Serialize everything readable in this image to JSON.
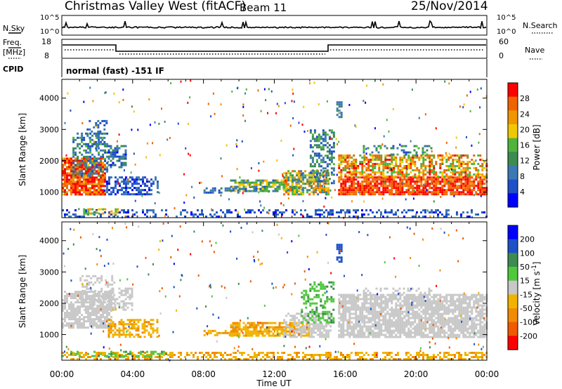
{
  "header": {
    "title": "Christmas Valley West (fitACF)",
    "beam": "Beam 11",
    "date": "25/Nov/2014"
  },
  "panels": {
    "nsky_label": "N.Sky",
    "nsky_ticks": [
      "10^5",
      "10^0"
    ],
    "nsearch_label": "N.Search",
    "nsearch_ticks": [
      "10^5",
      "10^0"
    ],
    "freq_label_1": "Freq.",
    "freq_label_2": "[MHz]",
    "freq_ticks": [
      "18",
      "8"
    ],
    "nave_label": "Nave",
    "nave_ticks": [
      "60",
      "0"
    ],
    "cpid_label": "CPID",
    "cpid_value": "normal (fast) -151 IF"
  },
  "colors": {
    "power": [
      "#0000ff",
      "#1e50c8",
      "#3c78b4",
      "#3c8c50",
      "#50b43c",
      "#f0c800",
      "#f09600",
      "#f06400",
      "#ff0000"
    ],
    "velocity": [
      "#0000ff",
      "#1e50c8",
      "#3c8c50",
      "#50c83c",
      "#c8c8c8",
      "#f0b400",
      "#f08c00",
      "#f05a00",
      "#ff0000"
    ],
    "ground": "#b4b4b4"
  },
  "chart_data": [
    {
      "type": "heatmap",
      "name": "power",
      "ylabel": "Slant Range [km]",
      "xlabel": "Time UT",
      "x_ticks": [
        "00:00",
        "04:00",
        "08:00",
        "12:00",
        "16:00",
        "20:00",
        "00:00"
      ],
      "x_range_hours": [
        0,
        24
      ],
      "y_ticks": [
        "1000",
        "2000",
        "3000",
        "4000"
      ],
      "y_range_km": [
        180,
        4600
      ],
      "colorbar": {
        "label": "Power [dB]",
        "ticks": [
          "4",
          "8",
          "12",
          "16",
          "20",
          "24",
          "28"
        ],
        "range": [
          0,
          32
        ]
      },
      "regions": [
        {
          "t": [
            0.0,
            2.4
          ],
          "r": [
            950,
            2100
          ],
          "value": 27,
          "spread": 6,
          "density": 0.85
        },
        {
          "t": [
            0.6,
            2.6
          ],
          "r": [
            1500,
            2900
          ],
          "value": 10,
          "spread": 6,
          "density": 0.45
        },
        {
          "t": [
            1.4,
            2.5
          ],
          "r": [
            2400,
            3300
          ],
          "value": 8,
          "spread": 4,
          "density": 0.25
        },
        {
          "t": [
            2.6,
            3.6
          ],
          "r": [
            1800,
            2500
          ],
          "value": 8,
          "spread": 6,
          "density": 0.55
        },
        {
          "t": [
            2.5,
            5.4
          ],
          "r": [
            900,
            1500
          ],
          "value": 6,
          "spread": 4,
          "density": 0.55
        },
        {
          "t": [
            8.0,
            10.0
          ],
          "r": [
            950,
            1150
          ],
          "value": 8,
          "spread": 4,
          "density": 0.5
        },
        {
          "t": [
            9.5,
            13.5
          ],
          "r": [
            1000,
            1400
          ],
          "value": 14,
          "spread": 8,
          "density": 0.7
        },
        {
          "t": [
            12.5,
            15.0
          ],
          "r": [
            950,
            1700
          ],
          "value": 18,
          "spread": 10,
          "density": 0.65
        },
        {
          "t": [
            14.0,
            15.4
          ],
          "r": [
            1300,
            3000
          ],
          "value": 10,
          "spread": 6,
          "density": 0.45
        },
        {
          "t": [
            15.5,
            15.8
          ],
          "r": [
            3400,
            3900
          ],
          "value": 10,
          "spread": 4,
          "density": 0.7
        },
        {
          "t": [
            15.6,
            24.0
          ],
          "r": [
            900,
            1500
          ],
          "value": 28,
          "spread": 4,
          "density": 0.85
        },
        {
          "t": [
            15.6,
            24.0
          ],
          "r": [
            1500,
            2200
          ],
          "value": 22,
          "spread": 8,
          "density": 0.6
        },
        {
          "t": [
            17.0,
            21.0
          ],
          "r": [
            2200,
            2500
          ],
          "value": 12,
          "spread": 6,
          "density": 0.3
        },
        {
          "t": [
            0.0,
            24.0
          ],
          "r": [
            200,
            450
          ],
          "value": 6,
          "spread": 4,
          "density": 0.3
        },
        {
          "t": [
            1.2,
            3.2
          ],
          "r": [
            300,
            480
          ],
          "value": 20,
          "spread": 6,
          "density": 0.45
        }
      ]
    },
    {
      "type": "heatmap",
      "name": "velocity",
      "ylabel": "Slant Range [km]",
      "xlabel": "Time UT",
      "x_ticks": [
        "00:00",
        "04:00",
        "08:00",
        "12:00",
        "16:00",
        "20:00",
        "00:00"
      ],
      "x_range_hours": [
        0,
        24
      ],
      "y_ticks": [
        "1000",
        "2000",
        "3000",
        "4000"
      ],
      "y_range_km": [
        180,
        4600
      ],
      "colorbar": {
        "label": "Velocity [m s-1]",
        "ticks": [
          "200",
          "100",
          "50",
          "15",
          "-15",
          "-50",
          "-100",
          "-200"
        ]
      },
      "regions": [
        {
          "t": [
            0.0,
            2.8
          ],
          "r": [
            1200,
            2400
          ],
          "value": 0,
          "spread": 10,
          "density": 0.75
        },
        {
          "t": [
            1.0,
            3.0
          ],
          "r": [
            1800,
            2900
          ],
          "value": 0,
          "spread": 10,
          "density": 0.4
        },
        {
          "t": [
            2.6,
            4.0
          ],
          "r": [
            1800,
            2500
          ],
          "value": 0,
          "spread": 10,
          "density": 0.5
        },
        {
          "t": [
            2.6,
            5.4
          ],
          "r": [
            900,
            1500
          ],
          "value": -40,
          "spread": 20,
          "density": 0.6
        },
        {
          "t": [
            8.0,
            10.0
          ],
          "r": [
            950,
            1150
          ],
          "value": -40,
          "spread": 20,
          "density": 0.5
        },
        {
          "t": [
            9.5,
            14.0
          ],
          "r": [
            950,
            1400
          ],
          "value": -45,
          "spread": 20,
          "density": 0.75
        },
        {
          "t": [
            12.5,
            15.2
          ],
          "r": [
            950,
            1700
          ],
          "value": 0,
          "spread": 15,
          "density": 0.6
        },
        {
          "t": [
            13.5,
            15.4
          ],
          "r": [
            1400,
            2700
          ],
          "value": 40,
          "spread": 20,
          "density": 0.45
        },
        {
          "t": [
            15.5,
            15.8
          ],
          "r": [
            3300,
            3900
          ],
          "value": 150,
          "spread": 40,
          "density": 0.7
        },
        {
          "t": [
            15.6,
            24.0
          ],
          "r": [
            900,
            2300
          ],
          "value": 0,
          "spread": 8,
          "density": 0.8
        },
        {
          "t": [
            17.0,
            21.0
          ],
          "r": [
            2200,
            2500
          ],
          "value": 0,
          "spread": 10,
          "density": 0.35
        },
        {
          "t": [
            0.0,
            24.0
          ],
          "r": [
            200,
            450
          ],
          "value": -45,
          "spread": 15,
          "density": 0.45
        },
        {
          "t": [
            0.0,
            6.0
          ],
          "r": [
            300,
            480
          ],
          "value": 40,
          "spread": 20,
          "density": 0.3
        }
      ]
    }
  ]
}
